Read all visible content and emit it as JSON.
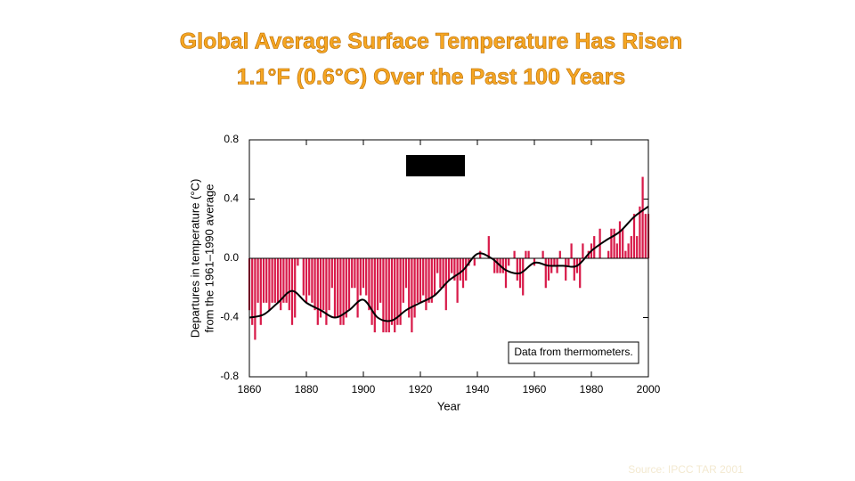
{
  "chart_data": {
    "type": "bar",
    "title": [
      "Global Average Surface Temperature Has Risen",
      "1.1°F (0.6°C) Over the Past 100 Years"
    ],
    "x_label": "Year",
    "y_label": [
      "Departures in temperature (°C)",
      "from the 1961–1990 average"
    ],
    "annotation": "Data from thermometers.",
    "source": "Source: IPCC TAR 2001",
    "xlim": [
      1860,
      2000
    ],
    "xticks": [
      1860,
      1880,
      1900,
      1920,
      1940,
      1960,
      1980,
      2000
    ],
    "ylim": [
      -0.8,
      0.8
    ],
    "yticks": [
      -0.8,
      -0.4,
      {
        "value": 0,
        "label": "0.0"
      },
      0.4,
      0.8
    ],
    "series": [
      {
        "type": "bar",
        "color": "#d81b4a",
        "x": [
          1860,
          1861,
          1862,
          1863,
          1864,
          1865,
          1866,
          1867,
          1868,
          1869,
          1870,
          1871,
          1872,
          1873,
          1874,
          1875,
          1876,
          1877,
          1878,
          1879,
          1880,
          1881,
          1882,
          1883,
          1884,
          1885,
          1886,
          1887,
          1888,
          1889,
          1890,
          1891,
          1892,
          1893,
          1894,
          1895,
          1896,
          1897,
          1898,
          1899,
          1900,
          1901,
          1902,
          1903,
          1904,
          1905,
          1906,
          1907,
          1908,
          1909,
          1910,
          1911,
          1912,
          1913,
          1914,
          1915,
          1916,
          1917,
          1918,
          1919,
          1920,
          1921,
          1922,
          1923,
          1924,
          1925,
          1926,
          1927,
          1928,
          1929,
          1930,
          1931,
          1932,
          1933,
          1934,
          1935,
          1936,
          1937,
          1938,
          1939,
          1940,
          1941,
          1942,
          1943,
          1944,
          1945,
          1946,
          1947,
          1948,
          1949,
          1950,
          1951,
          1952,
          1953,
          1954,
          1955,
          1956,
          1957,
          1958,
          1959,
          1960,
          1961,
          1962,
          1963,
          1964,
          1965,
          1966,
          1967,
          1968,
          1969,
          1970,
          1971,
          1972,
          1973,
          1974,
          1975,
          1976,
          1977,
          1978,
          1979,
          1980,
          1981,
          1982,
          1983,
          1984,
          1985,
          1986,
          1987,
          1988,
          1989,
          1990,
          1991,
          1992,
          1993,
          1994,
          1995,
          1996,
          1997,
          1998,
          1999,
          2000
        ],
        "values": [
          -0.35,
          -0.45,
          -0.55,
          -0.3,
          -0.45,
          -0.3,
          -0.3,
          -0.35,
          -0.3,
          -0.3,
          -0.3,
          -0.35,
          -0.3,
          -0.3,
          -0.35,
          -0.45,
          -0.4,
          -0.05,
          0.0,
          -0.25,
          -0.3,
          -0.25,
          -0.3,
          -0.35,
          -0.45,
          -0.4,
          -0.35,
          -0.45,
          -0.35,
          -0.2,
          -0.4,
          -0.4,
          -0.45,
          -0.45,
          -0.4,
          -0.35,
          -0.2,
          -0.2,
          -0.4,
          -0.25,
          -0.2,
          -0.25,
          -0.35,
          -0.45,
          -0.5,
          -0.35,
          -0.3,
          -0.5,
          -0.5,
          -0.5,
          -0.45,
          -0.5,
          -0.45,
          -0.45,
          -0.3,
          -0.2,
          -0.4,
          -0.5,
          -0.4,
          -0.3,
          -0.3,
          -0.25,
          -0.35,
          -0.3,
          -0.3,
          -0.25,
          -0.1,
          -0.2,
          -0.2,
          -0.35,
          -0.15,
          -0.1,
          -0.15,
          -0.3,
          -0.15,
          -0.2,
          -0.15,
          -0.05,
          0.0,
          -0.05,
          0.0,
          0.05,
          0.0,
          0.0,
          0.15,
          0.0,
          -0.1,
          -0.1,
          -0.1,
          -0.1,
          -0.2,
          -0.05,
          0.0,
          0.05,
          -0.15,
          -0.2,
          -0.25,
          0.05,
          0.05,
          0.0,
          -0.05,
          0.0,
          0.0,
          0.05,
          -0.2,
          -0.15,
          -0.1,
          -0.05,
          -0.1,
          0.05,
          0.0,
          -0.15,
          -0.05,
          0.1,
          -0.15,
          -0.1,
          -0.2,
          0.1,
          0.0,
          0.05,
          0.1,
          0.15,
          0.0,
          0.2,
          0.0,
          0.0,
          0.05,
          0.2,
          0.2,
          0.1,
          0.25,
          0.2,
          0.05,
          0.1,
          0.15,
          0.3,
          0.15,
          0.35,
          0.55,
          0.3,
          0.3
        ]
      },
      {
        "type": "line",
        "color": "#000000",
        "x": [
          1860,
          1865,
          1870,
          1875,
          1880,
          1885,
          1890,
          1895,
          1900,
          1905,
          1910,
          1915,
          1920,
          1925,
          1930,
          1935,
          1940,
          1945,
          1950,
          1955,
          1960,
          1965,
          1970,
          1975,
          1980,
          1985,
          1990,
          1995,
          2000
        ],
        "values": [
          -0.4,
          -0.38,
          -0.3,
          -0.22,
          -0.3,
          -0.35,
          -0.4,
          -0.35,
          -0.28,
          -0.4,
          -0.42,
          -0.35,
          -0.3,
          -0.25,
          -0.15,
          -0.08,
          0.03,
          0.0,
          -0.08,
          -0.1,
          -0.03,
          -0.05,
          -0.05,
          -0.05,
          0.05,
          0.12,
          0.18,
          0.28,
          0.35
        ]
      }
    ]
  }
}
